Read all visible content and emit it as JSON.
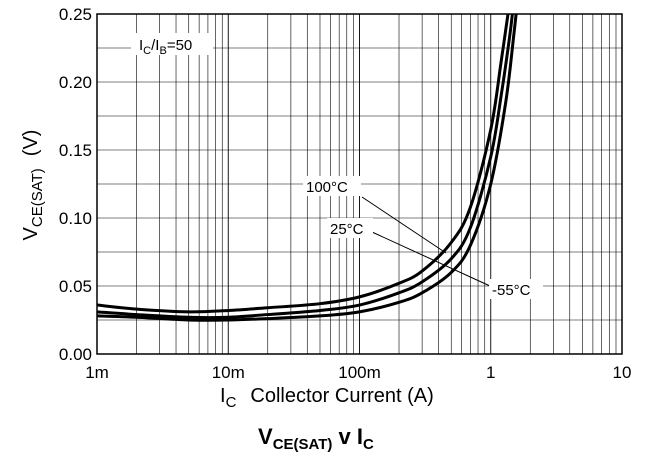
{
  "chart_data": {
    "type": "line",
    "title": "",
    "caption": {
      "main": "V",
      "sub": "CE(SAT)",
      "rest": " v I",
      "sub2": "C"
    },
    "ylabel": {
      "main": "V",
      "sub": "CE(SAT)",
      "unit": "(V)"
    },
    "xlabel": {
      "main": "I",
      "sub": "C",
      "rest": "Collector Current (A)"
    },
    "x_scale": "log",
    "xlim": [
      0.001,
      10
    ],
    "ylim": [
      0,
      0.25
    ],
    "grid": true,
    "x_ticks": [
      {
        "value": 0.001,
        "label": "1m"
      },
      {
        "value": 0.01,
        "label": "10m"
      },
      {
        "value": 0.1,
        "label": "100m"
      },
      {
        "value": 1,
        "label": "1"
      },
      {
        "value": 10,
        "label": "10"
      }
    ],
    "y_ticks": [
      {
        "value": 0,
        "label": "0.00"
      },
      {
        "value": 0.05,
        "label": "0.05"
      },
      {
        "value": 0.1,
        "label": "0.10"
      },
      {
        "value": 0.15,
        "label": "0.15"
      },
      {
        "value": 0.2,
        "label": "0.20"
      },
      {
        "value": 0.25,
        "label": "0.25"
      }
    ],
    "condition": {
      "a": "I",
      "a_sub": "C",
      "sep": "/I",
      "b_sub": "B",
      "rest": "=50"
    },
    "series": [
      {
        "name": "100°C",
        "x": [
          0.001,
          0.002,
          0.005,
          0.01,
          0.02,
          0.05,
          0.1,
          0.2,
          0.3,
          0.5,
          0.7,
          1.0,
          1.2,
          1.4
        ],
        "y": [
          0.036,
          0.033,
          0.031,
          0.032,
          0.034,
          0.037,
          0.042,
          0.052,
          0.061,
          0.082,
          0.108,
          0.165,
          0.215,
          0.26
        ]
      },
      {
        "name": "25°C",
        "x": [
          0.001,
          0.002,
          0.005,
          0.01,
          0.02,
          0.05,
          0.1,
          0.2,
          0.3,
          0.5,
          0.7,
          1.0,
          1.2,
          1.4,
          1.5
        ],
        "y": [
          0.031,
          0.029,
          0.027,
          0.027,
          0.029,
          0.032,
          0.036,
          0.045,
          0.053,
          0.07,
          0.093,
          0.145,
          0.19,
          0.235,
          0.26
        ]
      },
      {
        "name": "-55°C",
        "x": [
          0.001,
          0.002,
          0.005,
          0.01,
          0.02,
          0.05,
          0.1,
          0.2,
          0.3,
          0.5,
          0.7,
          1.0,
          1.3,
          1.5,
          1.6
        ],
        "y": [
          0.028,
          0.027,
          0.025,
          0.025,
          0.026,
          0.028,
          0.031,
          0.038,
          0.045,
          0.06,
          0.08,
          0.125,
          0.185,
          0.235,
          0.26
        ]
      }
    ]
  }
}
